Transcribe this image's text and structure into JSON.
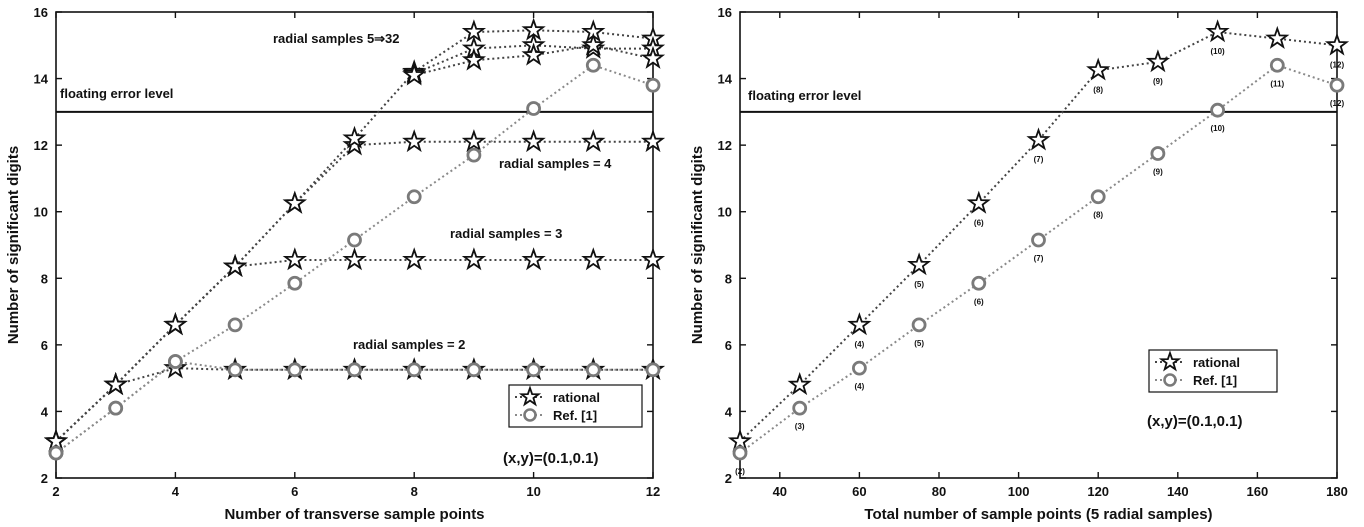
{
  "chart_data": [
    {
      "type": "line",
      "xlabel": "Number of transverse sample points",
      "ylabel": "Number of significant digits",
      "xlim": [
        2,
        12
      ],
      "ylim": [
        2,
        16
      ],
      "xticks": [
        2,
        4,
        6,
        8,
        10,
        12
      ],
      "yticks": [
        2,
        4,
        6,
        8,
        10,
        12,
        14,
        16
      ],
      "grid": false,
      "legend": {
        "position": "bottom-right",
        "entries": [
          "rational",
          "Ref. [1]"
        ]
      },
      "reference_line": {
        "y": 13,
        "label": "floating error level"
      },
      "annotations": [
        {
          "text": "radial samples 5⇒32"
        },
        {
          "text": "radial samples = 4"
        },
        {
          "text": "radial samples = 3"
        },
        {
          "text": "radial samples = 2"
        },
        {
          "text": "(x,y)=(0.1,0.1)"
        }
      ],
      "series": [
        {
          "name": "rational",
          "group": "radial samples = 2",
          "x": [
            2,
            3,
            4,
            5,
            6,
            7,
            8,
            9,
            10,
            11,
            12
          ],
          "y": [
            3.1,
            4.8,
            5.3,
            5.25,
            5.25,
            5.25,
            5.25,
            5.25,
            5.25,
            5.25,
            5.25
          ]
        },
        {
          "name": "rational",
          "group": "radial samples = 3",
          "x": [
            2,
            3,
            4,
            5,
            6,
            7,
            8,
            9,
            10,
            11,
            12
          ],
          "y": [
            3.1,
            4.8,
            6.6,
            8.35,
            8.55,
            8.55,
            8.55,
            8.55,
            8.55,
            8.55,
            8.55
          ]
        },
        {
          "name": "rational",
          "group": "radial samples = 4",
          "x": [
            2,
            3,
            4,
            5,
            6,
            7,
            8,
            9,
            10,
            11,
            12
          ],
          "y": [
            3.1,
            4.8,
            6.6,
            8.35,
            10.25,
            12.0,
            12.1,
            12.1,
            12.1,
            12.1,
            12.1
          ]
        },
        {
          "name": "rational",
          "group": "radial samples 5⇒32",
          "x": [
            2,
            3,
            4,
            5,
            6,
            7,
            8,
            9,
            10,
            11,
            12
          ],
          "y": [
            3.1,
            4.8,
            6.6,
            8.35,
            10.25,
            12.2,
            14.2,
            15.4,
            15.45,
            15.4,
            15.2
          ]
        },
        {
          "name": "rational",
          "group": "radial samples 5⇒32",
          "x": [
            8,
            9,
            10,
            11,
            12
          ],
          "y": [
            14.15,
            14.9,
            15.0,
            14.9,
            14.9
          ]
        },
        {
          "name": "rational",
          "group": "radial samples 5⇒32",
          "x": [
            8,
            9,
            10,
            11,
            12
          ],
          "y": [
            14.1,
            14.55,
            14.7,
            15.0,
            14.6
          ]
        },
        {
          "name": "Ref. [1]",
          "group": "radial samples = 2",
          "x": [
            2,
            3,
            4,
            5,
            6,
            7,
            8,
            9,
            10,
            11,
            12
          ],
          "y": [
            2.75,
            4.1,
            5.5,
            5.25,
            5.25,
            5.25,
            5.25,
            5.25,
            5.25,
            5.25,
            5.25
          ]
        },
        {
          "name": "Ref. [1]",
          "group": "radial samples 5⇒32",
          "x": [
            2,
            3,
            4,
            5,
            6,
            7,
            8,
            9,
            10,
            11,
            12
          ],
          "y": [
            2.75,
            4.1,
            5.5,
            6.6,
            7.85,
            9.15,
            10.45,
            11.7,
            13.1,
            14.4,
            13.8
          ]
        }
      ]
    },
    {
      "type": "line",
      "xlabel": "Total number of sample points (5 radial samples)",
      "ylabel": "Number of significant digits",
      "xlim": [
        30,
        180
      ],
      "ylim": [
        2,
        16
      ],
      "xticks": [
        40,
        60,
        80,
        100,
        120,
        140,
        160,
        180
      ],
      "yticks": [
        2,
        4,
        6,
        8,
        10,
        12,
        14,
        16
      ],
      "grid": false,
      "legend": {
        "position": "bottom-right",
        "entries": [
          "rational",
          "Ref. [1]"
        ]
      },
      "reference_line": {
        "y": 13,
        "label": "floating error level"
      },
      "annotations": [
        {
          "text": "(x,y)=(0.1,0.1)"
        }
      ],
      "series": [
        {
          "name": "rational",
          "x": [
            30,
            45,
            60,
            75,
            90,
            105,
            120,
            135,
            150,
            165,
            180
          ],
          "y": [
            3.1,
            4.8,
            6.6,
            8.4,
            10.25,
            12.15,
            14.25,
            14.5,
            15.4,
            15.2,
            15.0
          ],
          "point_labels": [
            "",
            "",
            "(4)",
            "(5)",
            "(6)",
            "(7)",
            "(8)",
            "(9)",
            "(10)",
            "",
            "(12)"
          ]
        },
        {
          "name": "Ref. [1]",
          "x": [
            30,
            45,
            60,
            75,
            90,
            105,
            120,
            135,
            150,
            165,
            180
          ],
          "y": [
            2.75,
            4.1,
            5.3,
            6.6,
            7.85,
            9.15,
            10.45,
            11.75,
            13.05,
            14.4,
            13.8
          ],
          "point_labels": [
            "(2)",
            "(3)",
            "(4)",
            "(5)",
            "(6)",
            "(7)",
            "(8)",
            "(9)",
            "(10)",
            "(11)",
            "(12)"
          ]
        }
      ]
    }
  ]
}
